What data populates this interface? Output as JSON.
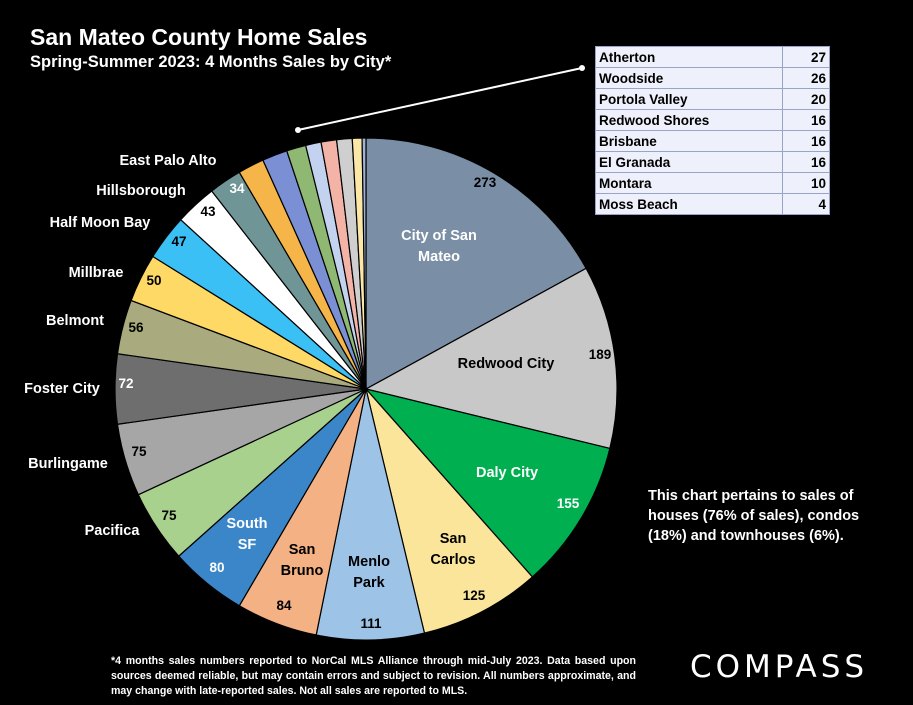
{
  "chart_data": {
    "type": "pie",
    "title": "San Mateo County Home Sales",
    "subtitle": "Spring-Summer 2023: 4 Months Sales by City*",
    "slices": [
      {
        "label": "City of San Mateo",
        "value": 273,
        "color": "#7a8fa6"
      },
      {
        "label": "Redwood City",
        "value": 189,
        "color": "#c8c8c8"
      },
      {
        "label": "Daly City",
        "value": 155,
        "color": "#00b050"
      },
      {
        "label": "San Carlos",
        "value": 125,
        "color": "#fae59a"
      },
      {
        "label": "Menlo Park",
        "value": 111,
        "color": "#9dc3e6"
      },
      {
        "label": "San Bruno",
        "value": 84,
        "color": "#f4b183"
      },
      {
        "label": "South SF",
        "value": 80,
        "color": "#3a86c8"
      },
      {
        "label": "Pacifica",
        "value": 75,
        "color": "#a9d18e"
      },
      {
        "label": "Burlingame",
        "value": 75,
        "color": "#a6a6a6"
      },
      {
        "label": "Foster City",
        "value": 72,
        "color": "#6e6e6e"
      },
      {
        "label": "Belmont",
        "value": 56,
        "color": "#a9ab7e"
      },
      {
        "label": "Millbrae",
        "value": 50,
        "color": "#ffd966"
      },
      {
        "label": "Half Moon Bay",
        "value": 47,
        "color": "#3bc0f5"
      },
      {
        "label": "Hillsborough",
        "value": 43,
        "color": "#ffffff"
      },
      {
        "label": "East Palo Alto",
        "value": 34,
        "color": "#6f9596"
      },
      {
        "label": "Atherton",
        "value": 27,
        "color": "#f5b548"
      },
      {
        "label": "Woodside",
        "value": 26,
        "color": "#7b8fd4"
      },
      {
        "label": "Portola Valley",
        "value": 20,
        "color": "#8fb873"
      },
      {
        "label": "Redwood Shores",
        "value": 16,
        "color": "#c3d3ef"
      },
      {
        "label": "Brisbane",
        "value": 16,
        "color": "#f3b3a6"
      },
      {
        "label": "El Granada",
        "value": 16,
        "color": "#cfcfcf"
      },
      {
        "label": "Montara",
        "value": 10,
        "color": "#fbe7a6"
      },
      {
        "label": "Moss Beach",
        "value": 4,
        "color": "#9fb2d8"
      }
    ]
  },
  "small_table_title": "",
  "note": "This chart pertains to sales of houses (76% of sales), condos (18%) and townhouses (6%).",
  "footnote": "*4 months sales numbers reported to NorCal MLS Alliance through mid-July 2023. Data based upon sources deemed reliable, but may contain errors and subject to revision. All numbers approximate, and may change with late-reported sales. Not all sales are reported to MLS.",
  "logo": "COMPASS"
}
